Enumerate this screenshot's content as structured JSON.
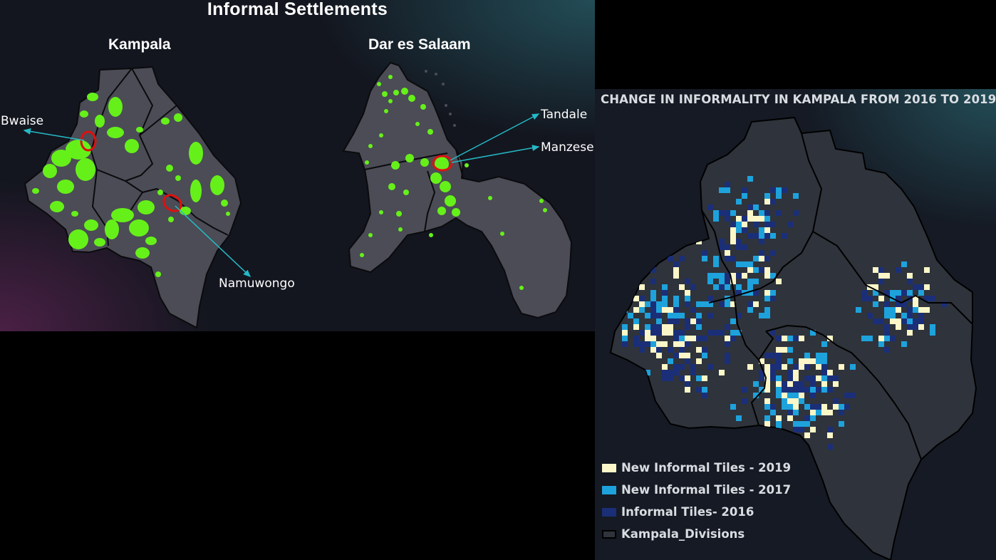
{
  "left_panel": {
    "title": "Informal Settlements",
    "kampala_title": "Kampala",
    "dar_title": "Dar es Salaam",
    "annotations": {
      "bwaise": "Bwaise",
      "namuwongo": "Namuwongo",
      "tandale": "Tandale",
      "manzese": "Manzese"
    }
  },
  "right_panel": {
    "title": "CHANGE IN INFORMALITY IN KAMPALA FROM 2016 TO 2019",
    "legend": [
      {
        "label": "New Informal Tiles - 2019",
        "color": "#fbf7c8"
      },
      {
        "label": "New Informal Tiles - 2017",
        "color": "#1ea2dc"
      },
      {
        "label": "Informal Tiles- 2016",
        "color": "#1b2f78"
      },
      {
        "label": "Kampala_Divisions",
        "color": "#2f333b"
      }
    ]
  },
  "colors": {
    "settlement_green": "#66f01a",
    "highlight_red": "#e01010",
    "arrow_teal": "#25b9c6",
    "division_fill": "#4b4c55"
  }
}
